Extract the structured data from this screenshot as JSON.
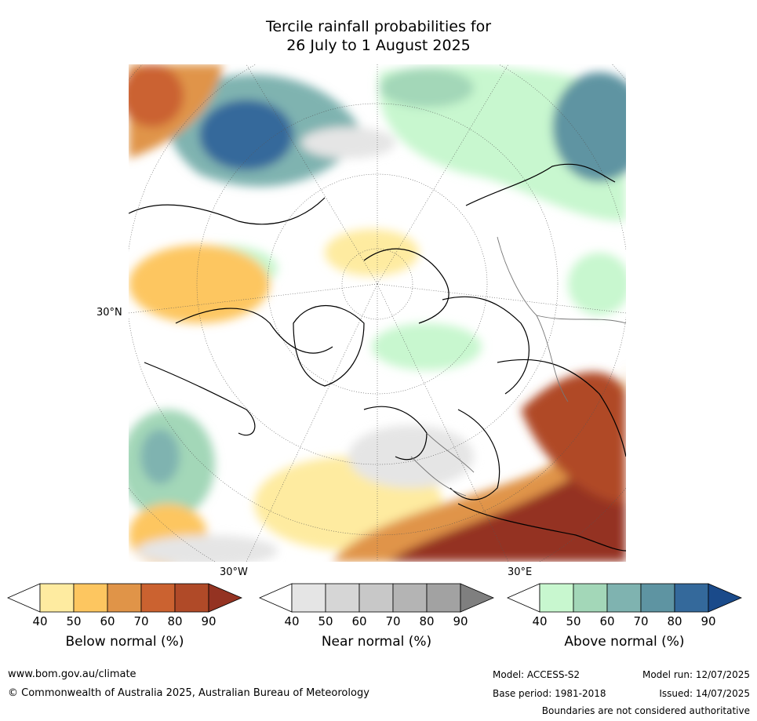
{
  "title": {
    "line1": "Tercile rainfall probabilities for",
    "line2": "26 July to 1 August 2025"
  },
  "map": {
    "labels": {
      "lat_30n": "30°N",
      "lon_30w": "30°W",
      "lon_30e": "30°E"
    }
  },
  "colorbars": [
    {
      "id": "below",
      "title": "Below normal (%)",
      "ticks": [
        "40",
        "50",
        "60",
        "70",
        "80",
        "90"
      ],
      "colors": [
        "#ffffff",
        "#feeba0",
        "#fdc660",
        "#e09448",
        "#cb6230",
        "#b04a28",
        "#943322"
      ]
    },
    {
      "id": "near",
      "title": "Near normal (%)",
      "ticks": [
        "40",
        "50",
        "60",
        "70",
        "80",
        "90"
      ],
      "colors": [
        "#ffffff",
        "#e5e5e5",
        "#d6d6d6",
        "#c8c8c8",
        "#b4b4b4",
        "#a2a2a2",
        "#7f7f7f"
      ]
    },
    {
      "id": "above",
      "title": "Above normal (%)",
      "ticks": [
        "40",
        "50",
        "60",
        "70",
        "80",
        "90"
      ],
      "colors": [
        "#ffffff",
        "#c8f7cf",
        "#a3d7b8",
        "#7fb3b0",
        "#5e94a2",
        "#34699b",
        "#1a4a8a"
      ]
    }
  ],
  "footer": {
    "website": "www.bom.gov.au/climate",
    "copyright": "© Commonwealth of Australia 2025, Australian Bureau of Meteorology",
    "model": "Model: ACCESS-S2",
    "model_run": "Model run: 12/07/2025",
    "base_period": "Base period: 1981-2018",
    "issued": "Issued: 14/07/2025",
    "disclaimer": "Boundaries are not considered authoritative"
  }
}
